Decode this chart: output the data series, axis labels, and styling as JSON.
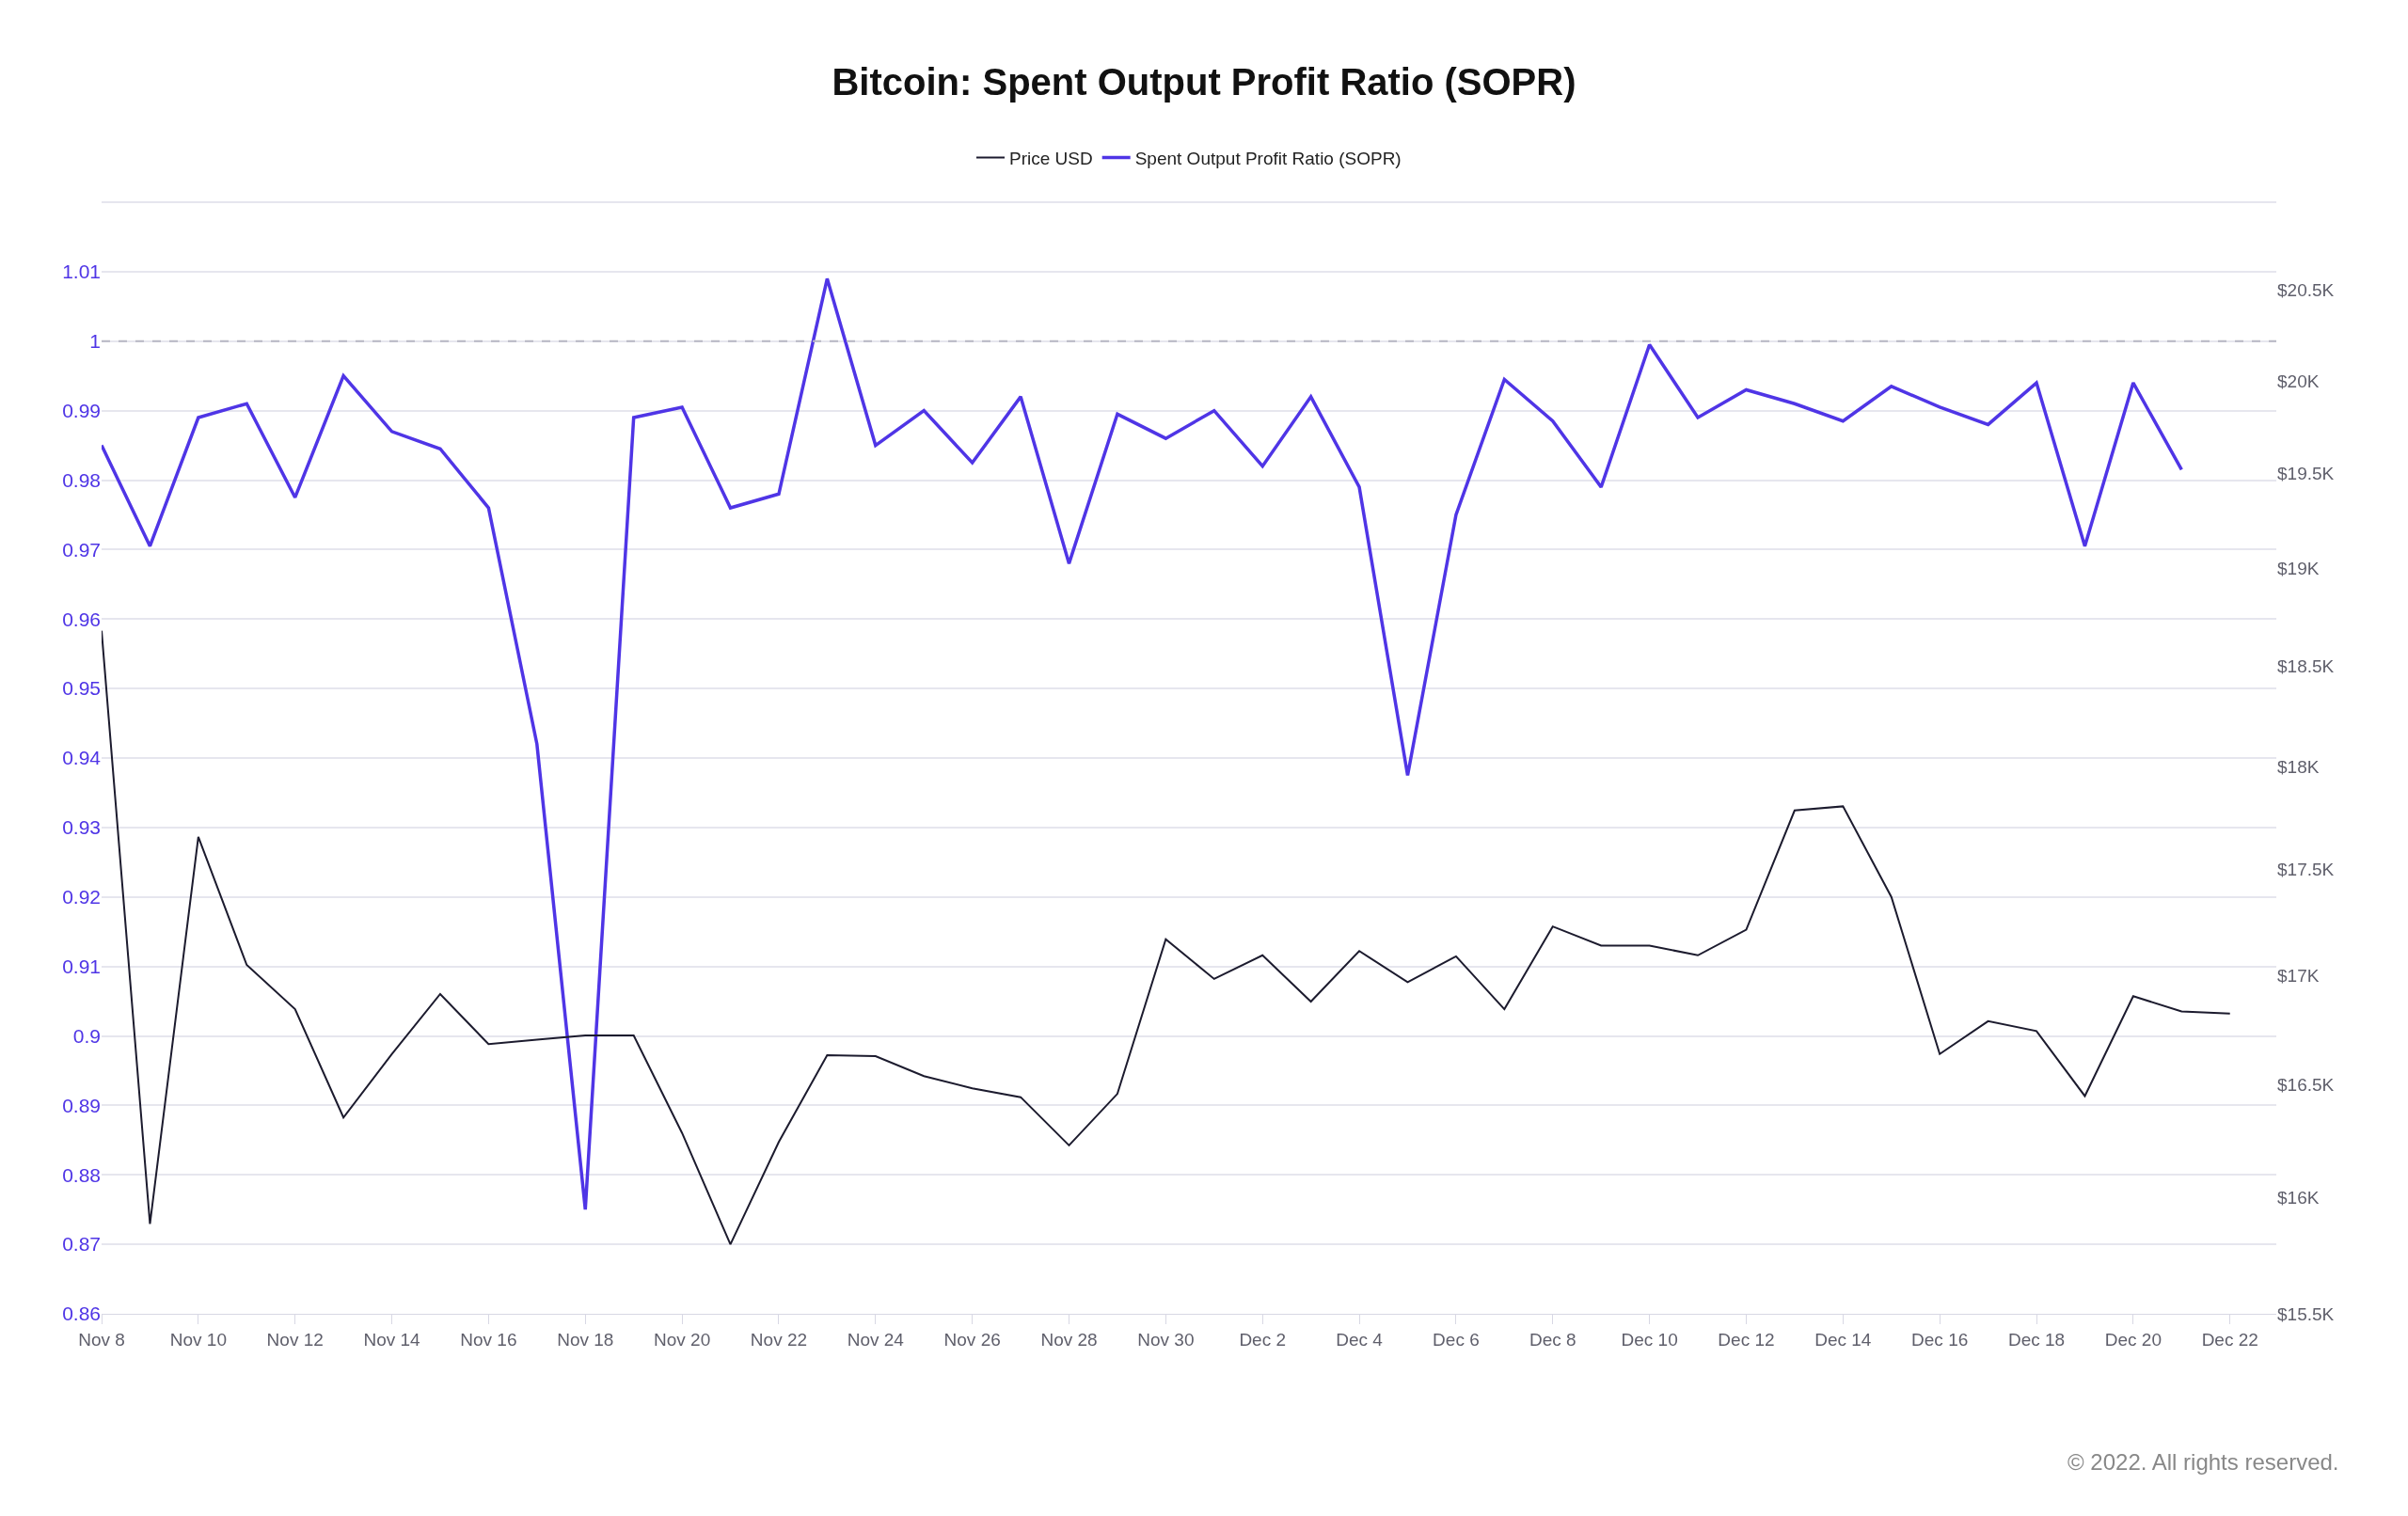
{
  "chart_data": {
    "type": "line",
    "title": "Bitcoin: Spent Output Profit Ratio (SOPR)",
    "x": [
      "2022-11-08",
      "2022-11-09",
      "2022-11-10",
      "2022-11-11",
      "2022-11-12",
      "2022-11-13",
      "2022-11-14",
      "2022-11-15",
      "2022-11-16",
      "2022-11-17",
      "2022-11-18",
      "2022-11-19",
      "2022-11-20",
      "2022-11-21",
      "2022-11-22",
      "2022-11-23",
      "2022-11-24",
      "2022-11-25",
      "2022-11-26",
      "2022-11-27",
      "2022-11-28",
      "2022-11-29",
      "2022-11-30",
      "2022-12-01",
      "2022-12-02",
      "2022-12-03",
      "2022-12-04",
      "2022-12-05",
      "2022-12-06",
      "2022-12-07",
      "2022-12-08",
      "2022-12-09",
      "2022-12-10",
      "2022-12-11",
      "2022-12-12",
      "2022-12-13",
      "2022-12-14",
      "2022-12-15",
      "2022-12-16",
      "2022-12-17",
      "2022-12-18",
      "2022-12-19",
      "2022-12-20",
      "2022-12-21",
      "2022-12-22"
    ],
    "series": [
      {
        "name": "Price USD",
        "color": "#1c1b2e",
        "axis": "y2",
        "values": [
          18680,
          15885,
          17657,
          17050,
          16845,
          16354,
          16640,
          16915,
          16685,
          16705,
          16725,
          16725,
          16285,
          15797,
          16245,
          16635,
          16630,
          16540,
          16485,
          16445,
          16230,
          16460,
          17170,
          16985,
          17095,
          16880,
          17115,
          16970,
          17090,
          16845,
          17230,
          17140,
          17140,
          17095,
          17215,
          17785,
          17805,
          17370,
          16640,
          16790,
          16745,
          16450,
          16905,
          16835,
          16825
        ]
      },
      {
        "name": "Spent Output Profit Ratio (SOPR)",
        "color": "#4f35e6",
        "values": [
          0.985,
          0.9705,
          0.989,
          0.991,
          0.9775,
          0.995,
          0.987,
          0.9845,
          0.976,
          0.942,
          0.875,
          0.989,
          0.9905,
          0.976,
          0.978,
          1.009,
          0.985,
          0.99,
          0.9825,
          0.992,
          0.968,
          0.9895,
          0.986,
          0.99,
          0.982,
          0.992,
          0.979,
          0.9375,
          0.975,
          0.9945,
          0.9885,
          0.979,
          0.9995,
          0.989,
          0.993,
          0.991,
          0.9885,
          0.9935,
          0.9905,
          0.988,
          0.994,
          0.9705,
          0.994,
          0.9815,
          null
        ]
      }
    ],
    "xlim": [
      "2022-11-08",
      "2022-12-22T23:00"
    ],
    "xticks": [
      {
        "value": "2022-11-08",
        "label": "Nov 8"
      },
      {
        "value": "2022-11-10",
        "label": "Nov 10"
      },
      {
        "value": "2022-11-12",
        "label": "Nov 12"
      },
      {
        "value": "2022-11-14",
        "label": "Nov 14"
      },
      {
        "value": "2022-11-16",
        "label": "Nov 16"
      },
      {
        "value": "2022-11-18",
        "label": "Nov 18"
      },
      {
        "value": "2022-11-20",
        "label": "Nov 20"
      },
      {
        "value": "2022-11-22",
        "label": "Nov 22"
      },
      {
        "value": "2022-11-24",
        "label": "Nov 24"
      },
      {
        "value": "2022-11-26",
        "label": "Nov 26"
      },
      {
        "value": "2022-11-28",
        "label": "Nov 28"
      },
      {
        "value": "2022-11-30",
        "label": "Nov 30"
      },
      {
        "value": "2022-12-02",
        "label": "Dec 2"
      },
      {
        "value": "2022-12-04",
        "label": "Dec 4"
      },
      {
        "value": "2022-12-06",
        "label": "Dec 6"
      },
      {
        "value": "2022-12-08",
        "label": "Dec 8"
      },
      {
        "value": "2022-12-10",
        "label": "Dec 10"
      },
      {
        "value": "2022-12-12",
        "label": "Dec 12"
      },
      {
        "value": "2022-12-14",
        "label": "Dec 14"
      },
      {
        "value": "2022-12-16",
        "label": "Dec 16"
      },
      {
        "value": "2022-12-18",
        "label": "Dec 18"
      },
      {
        "value": "2022-12-20",
        "label": "Dec 20"
      },
      {
        "value": "2022-12-22",
        "label": "Dec 22"
      }
    ],
    "ylim": [
      0.86,
      1.02
    ],
    "yticks": [
      0.86,
      0.87,
      0.88,
      0.89,
      0.9,
      0.91,
      0.92,
      0.93,
      0.94,
      0.95,
      0.96,
      0.97,
      0.98,
      0.99,
      1,
      1.01
    ],
    "y2lim": [
      15500,
      21000
    ],
    "y2ticks": [
      {
        "value": 15500,
        "label": "$15.5K"
      },
      {
        "value": 16000,
        "label": "$16K"
      },
      {
        "value": 16500,
        "label": "$16.5K"
      },
      {
        "value": 17000,
        "label": "$17K"
      },
      {
        "value": 17500,
        "label": "$17.5K"
      },
      {
        "value": 18000,
        "label": "$18K"
      },
      {
        "value": 18500,
        "label": "$18.5K"
      },
      {
        "value": 19000,
        "label": "$19K"
      },
      {
        "value": 19500,
        "label": "$19.5K"
      },
      {
        "value": 20000,
        "label": "$20K"
      },
      {
        "value": 20500,
        "label": "$20.5K"
      }
    ],
    "log": "y2",
    "grid": "y",
    "legend": "top",
    "ref_lines": [
      {
        "axis": "y",
        "value": 1,
        "color": "#b8b8c4",
        "line_style": "dashed"
      }
    ],
    "annotations": [
      "© 2022. All rights reserved."
    ]
  }
}
